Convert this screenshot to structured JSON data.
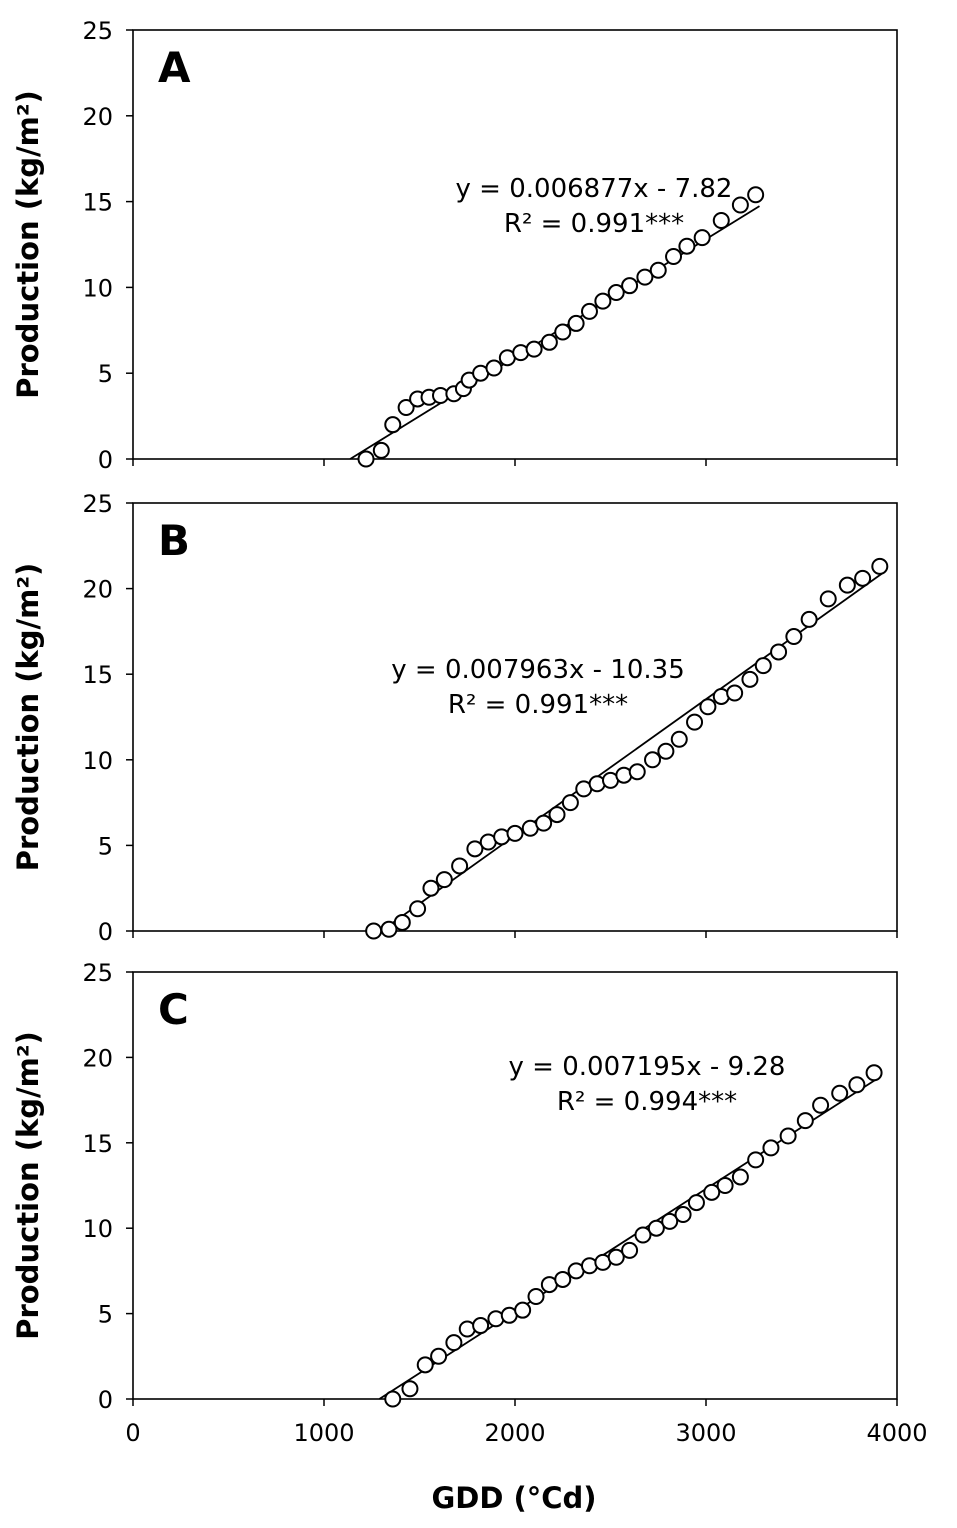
{
  "xlabel": "GDD (°Cd)",
  "chart_data": [
    {
      "type": "scatter",
      "panel": "A",
      "ylabel": "Production (kg/m²)",
      "xlabel": "",
      "xlim": [
        0,
        4000
      ],
      "ylim": [
        0,
        25
      ],
      "xticks": [
        "0",
        "1000",
        "2000",
        "3000",
        "4000"
      ],
      "yticks": [
        "0",
        "5",
        "10",
        "15",
        "20",
        "25"
      ],
      "equation": "y = 0.006877x - 7.82",
      "r2": "R² = 0.991***",
      "fit": {
        "slope": 0.006877,
        "intercept": -7.82,
        "x_range": [
          1137,
          3280
        ]
      },
      "points": [
        [
          1220,
          0.0
        ],
        [
          1300,
          0.5
        ],
        [
          1360,
          2.0
        ],
        [
          1430,
          3.0
        ],
        [
          1490,
          3.5
        ],
        [
          1550,
          3.6
        ],
        [
          1610,
          3.7
        ],
        [
          1680,
          3.8
        ],
        [
          1730,
          4.1
        ],
        [
          1760,
          4.6
        ],
        [
          1820,
          5.0
        ],
        [
          1890,
          5.3
        ],
        [
          1960,
          5.9
        ],
        [
          2030,
          6.2
        ],
        [
          2100,
          6.4
        ],
        [
          2180,
          6.8
        ],
        [
          2250,
          7.4
        ],
        [
          2320,
          7.9
        ],
        [
          2390,
          8.6
        ],
        [
          2460,
          9.2
        ],
        [
          2530,
          9.7
        ],
        [
          2600,
          10.1
        ],
        [
          2680,
          10.6
        ],
        [
          2750,
          11.0
        ],
        [
          2830,
          11.8
        ],
        [
          2900,
          12.4
        ],
        [
          2980,
          12.9
        ],
        [
          3080,
          13.9
        ],
        [
          3180,
          14.8
        ],
        [
          3260,
          15.4
        ]
      ]
    },
    {
      "type": "scatter",
      "panel": "B",
      "ylabel": "Production (kg/m²)",
      "xlabel": "",
      "xlim": [
        0,
        4000
      ],
      "ylim": [
        0,
        25
      ],
      "xticks": [],
      "yticks": [
        "0",
        "5",
        "10",
        "15",
        "20",
        "25"
      ],
      "equation": "y = 0.007963x - 10.35",
      "r2": "R² = 0.991***",
      "fit": {
        "slope": 0.007963,
        "intercept": -10.35,
        "x_range": [
          1300,
          3920
        ]
      },
      "points": [
        [
          1260,
          0.0
        ],
        [
          1340,
          0.1
        ],
        [
          1410,
          0.5
        ],
        [
          1490,
          1.3
        ],
        [
          1560,
          2.5
        ],
        [
          1630,
          3.0
        ],
        [
          1710,
          3.8
        ],
        [
          1790,
          4.8
        ],
        [
          1860,
          5.2
        ],
        [
          1930,
          5.5
        ],
        [
          2000,
          5.7
        ],
        [
          2080,
          6.0
        ],
        [
          2150,
          6.3
        ],
        [
          2220,
          6.8
        ],
        [
          2290,
          7.5
        ],
        [
          2360,
          8.3
        ],
        [
          2430,
          8.6
        ],
        [
          2500,
          8.8
        ],
        [
          2570,
          9.1
        ],
        [
          2640,
          9.3
        ],
        [
          2720,
          10.0
        ],
        [
          2790,
          10.5
        ],
        [
          2860,
          11.2
        ],
        [
          2940,
          12.2
        ],
        [
          3010,
          13.1
        ],
        [
          3080,
          13.7
        ],
        [
          3150,
          13.9
        ],
        [
          3230,
          14.7
        ],
        [
          3300,
          15.5
        ],
        [
          3380,
          16.3
        ],
        [
          3460,
          17.2
        ],
        [
          3540,
          18.2
        ],
        [
          3640,
          19.4
        ],
        [
          3740,
          20.2
        ],
        [
          3820,
          20.6
        ],
        [
          3910,
          21.3
        ]
      ]
    },
    {
      "type": "scatter",
      "panel": "C",
      "ylabel": "Production (kg/m²)",
      "xlabel": "",
      "xlim": [
        0,
        4000
      ],
      "ylim": [
        0,
        25
      ],
      "xticks": [
        "0",
        "1000",
        "2000",
        "3000",
        "4000"
      ],
      "yticks": [
        "0",
        "5",
        "10",
        "15",
        "20",
        "25"
      ],
      "equation": "y = 0.007195x - 9.28",
      "r2": "R² = 0.994***",
      "fit": {
        "slope": 0.007195,
        "intercept": -9.28,
        "x_range": [
          1290,
          3900
        ]
      },
      "points": [
        [
          1360,
          0.0
        ],
        [
          1450,
          0.6
        ],
        [
          1530,
          2.0
        ],
        [
          1600,
          2.5
        ],
        [
          1680,
          3.3
        ],
        [
          1750,
          4.1
        ],
        [
          1820,
          4.3
        ],
        [
          1900,
          4.7
        ],
        [
          1970,
          4.9
        ],
        [
          2040,
          5.2
        ],
        [
          2110,
          6.0
        ],
        [
          2180,
          6.7
        ],
        [
          2250,
          7.0
        ],
        [
          2320,
          7.5
        ],
        [
          2390,
          7.8
        ],
        [
          2460,
          8.0
        ],
        [
          2530,
          8.3
        ],
        [
          2600,
          8.7
        ],
        [
          2670,
          9.6
        ],
        [
          2740,
          10.0
        ],
        [
          2810,
          10.4
        ],
        [
          2880,
          10.8
        ],
        [
          2950,
          11.5
        ],
        [
          3030,
          12.1
        ],
        [
          3100,
          12.5
        ],
        [
          3180,
          13.0
        ],
        [
          3260,
          14.0
        ],
        [
          3340,
          14.7
        ],
        [
          3430,
          15.4
        ],
        [
          3520,
          16.3
        ],
        [
          3600,
          17.2
        ],
        [
          3700,
          17.9
        ],
        [
          3790,
          18.4
        ],
        [
          3880,
          19.1
        ]
      ]
    }
  ]
}
